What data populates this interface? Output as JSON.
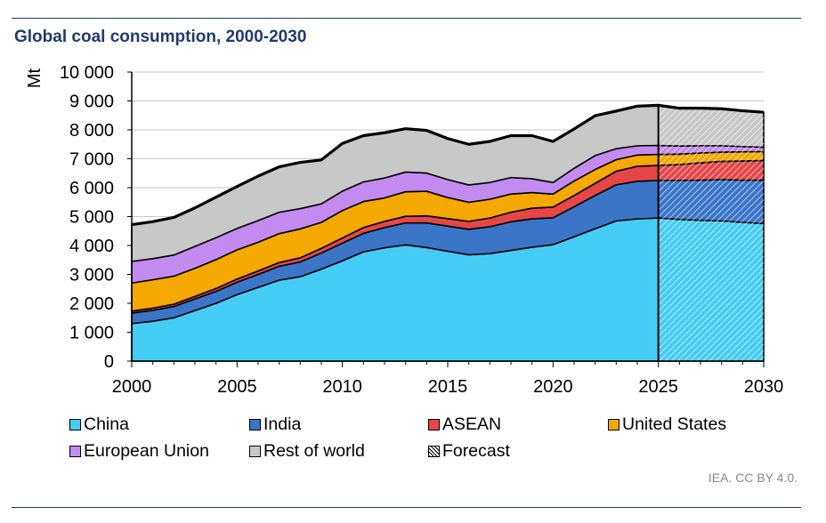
{
  "title": "Global coal consumption, 2000-2030",
  "source": "IEA. CC BY 4.0.",
  "chart_data": {
    "type": "area",
    "stacked": true,
    "ylabel": "Mt",
    "xlabel": "",
    "ylim": [
      0,
      10000
    ],
    "xlim": [
      2000,
      2030
    ],
    "yticks": [
      0,
      1000,
      2000,
      3000,
      4000,
      5000,
      6000,
      7000,
      8000,
      9000,
      10000
    ],
    "ytick_labels": [
      "0",
      "1 000",
      "2 000",
      "3 000",
      "4 000",
      "5 000",
      "6 000",
      "7 000",
      "8 000",
      "9 000",
      "10 000"
    ],
    "xticks": [
      2000,
      2005,
      2010,
      2015,
      2020,
      2025,
      2030
    ],
    "xtick_labels": [
      "2000",
      "2005",
      "2010",
      "2015",
      "2020",
      "2025",
      "2030"
    ],
    "grid": "horizontal",
    "forecast_start": 2025,
    "x": [
      2000,
      2001,
      2002,
      2003,
      2004,
      2005,
      2006,
      2007,
      2008,
      2009,
      2010,
      2011,
      2012,
      2013,
      2014,
      2015,
      2016,
      2017,
      2018,
      2019,
      2020,
      2021,
      2022,
      2023,
      2024,
      2025,
      2026,
      2027,
      2028,
      2029,
      2030
    ],
    "series": [
      {
        "name": "China",
        "color": "#45ccf5",
        "values": [
          1300,
          1380,
          1500,
          1750,
          2000,
          2300,
          2550,
          2800,
          2920,
          3180,
          3470,
          3780,
          3920,
          4020,
          3930,
          3800,
          3680,
          3720,
          3830,
          3940,
          4030,
          4300,
          4580,
          4850,
          4920,
          4950,
          4900,
          4870,
          4850,
          4800,
          4760
        ]
      },
      {
        "name": "India",
        "color": "#3a75c8",
        "values": [
          360,
          380,
          390,
          400,
          410,
          430,
          450,
          480,
          510,
          560,
          610,
          640,
          700,
          760,
          850,
          870,
          880,
          930,
          990,
          980,
          930,
          1040,
          1150,
          1250,
          1300,
          1300,
          1350,
          1390,
          1430,
          1460,
          1500
        ]
      },
      {
        "name": "ASEAN",
        "color": "#e64646",
        "values": [
          70,
          75,
          80,
          90,
          100,
          110,
          120,
          130,
          145,
          160,
          180,
          200,
          215,
          230,
          245,
          260,
          275,
          300,
          330,
          370,
          370,
          390,
          420,
          470,
          520,
          520,
          550,
          600,
          630,
          660,
          680
        ]
      },
      {
        "name": "United States",
        "color": "#f4a800",
        "values": [
          970,
          980,
          970,
          970,
          1000,
          1010,
          990,
          1000,
          1000,
          900,
          950,
          900,
          810,
          850,
          850,
          730,
          660,
          650,
          630,
          540,
          450,
          500,
          480,
          400,
          390,
          380,
          360,
          340,
          320,
          320,
          310
        ]
      },
      {
        "name": "European Union",
        "color": "#c38bf0",
        "values": [
          750,
          730,
          730,
          760,
          760,
          740,
          750,
          740,
          700,
          640,
          670,
          680,
          690,
          680,
          630,
          620,
          600,
          580,
          570,
          480,
          400,
          440,
          480,
          380,
          320,
          310,
          280,
          250,
          220,
          180,
          150
        ]
      },
      {
        "name": "Rest of world",
        "color": "#c8c8c8",
        "values": [
          1270,
          1280,
          1300,
          1330,
          1400,
          1450,
          1540,
          1570,
          1600,
          1520,
          1650,
          1600,
          1565,
          1500,
          1475,
          1420,
          1405,
          1420,
          1450,
          1490,
          1420,
          1360,
          1380,
          1300,
          1370,
          1390,
          1310,
          1300,
          1280,
          1240,
          1210
        ]
      }
    ],
    "legend": {
      "position": "bottom",
      "entries": [
        {
          "label": "China",
          "color": "#45ccf5",
          "pattern": "solid"
        },
        {
          "label": "India",
          "color": "#3a75c8",
          "pattern": "solid"
        },
        {
          "label": "ASEAN",
          "color": "#e64646",
          "pattern": "solid"
        },
        {
          "label": "United States",
          "color": "#f4a800",
          "pattern": "solid"
        },
        {
          "label": "European Union",
          "color": "#c38bf0",
          "pattern": "solid"
        },
        {
          "label": "Rest of world",
          "color": "#c8c8c8",
          "pattern": "solid"
        },
        {
          "label": "Forecast",
          "color": "#ffffff",
          "pattern": "hatch"
        }
      ]
    }
  }
}
